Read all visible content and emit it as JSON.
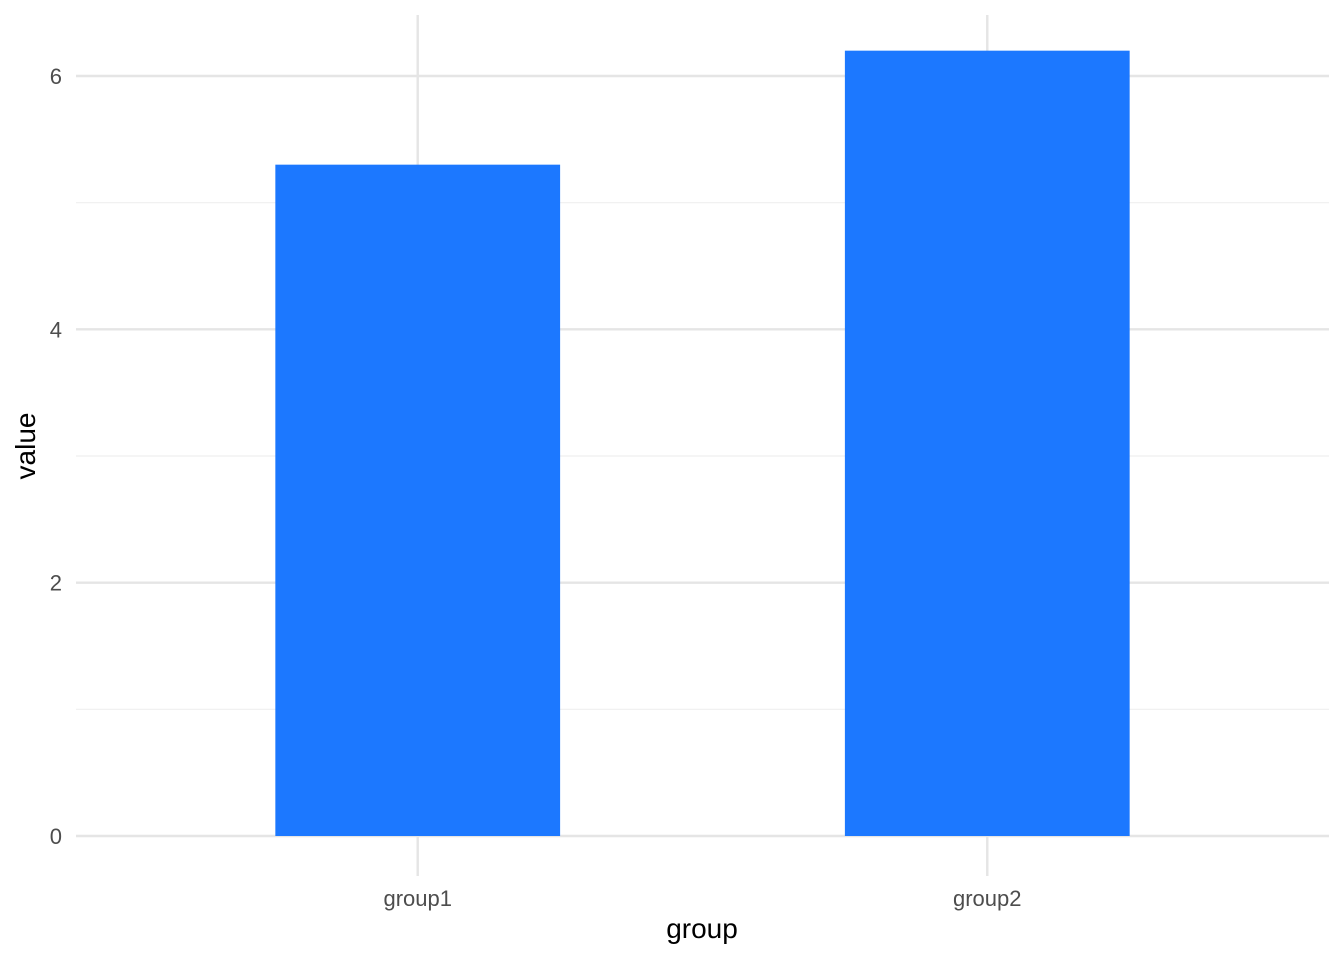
{
  "chart_data": {
    "type": "bar",
    "categories": [
      "group1",
      "group2"
    ],
    "values": [
      5.3,
      6.2
    ],
    "xlabel": "group",
    "ylabel": "value",
    "ylim": [
      0,
      6.5
    ],
    "yticks": [
      0,
      2,
      4,
      6
    ],
    "grid": true,
    "legend": "none"
  },
  "colors": {
    "bar": "#1c78ff",
    "grid_major": "#e5e5e5",
    "grid_minor": "#efefef",
    "tick_label": "#4d4d4d",
    "axis_title": "#000000"
  }
}
